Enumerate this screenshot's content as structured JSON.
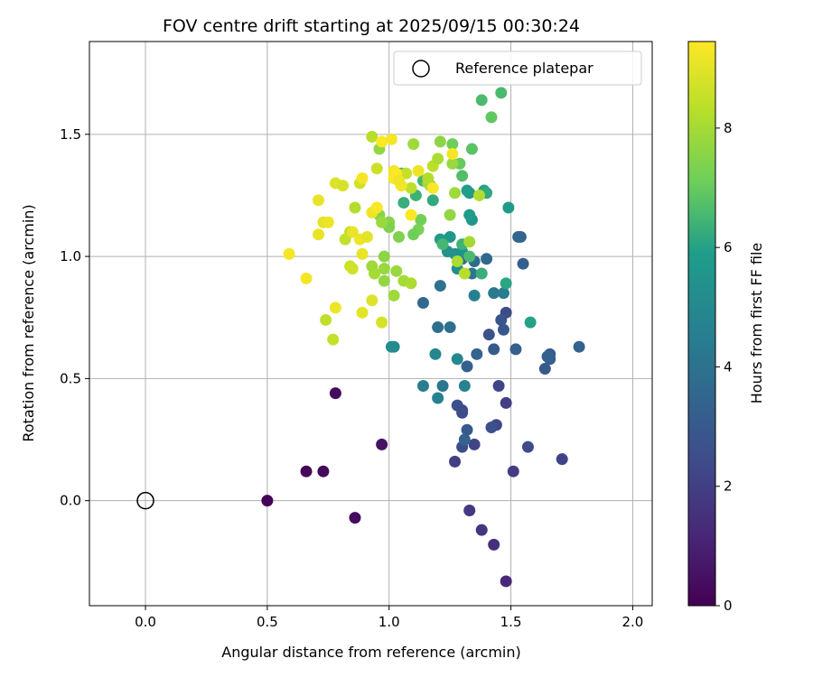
{
  "chart_data": {
    "type": "scatter",
    "title": "FOV centre drift starting at 2025/09/15 00:30:24",
    "xlabel": "Angular distance from reference (arcmin)",
    "ylabel": "Rotation from reference (arcmin)",
    "xlim": [
      -0.23,
      2.08
    ],
    "ylim": [
      -0.43,
      1.88
    ],
    "xticks": [
      "0.0",
      "0.5",
      "1.0",
      "1.5",
      "2.0"
    ],
    "xtick_values": [
      0.0,
      0.5,
      1.0,
      1.5,
      2.0
    ],
    "yticks": [
      "0.0",
      "0.5",
      "1.0",
      "1.5"
    ],
    "ytick_values": [
      0.0,
      0.5,
      1.0,
      1.5
    ],
    "grid": true,
    "legend": {
      "label": "Reference platepar",
      "placement": "top-right"
    },
    "reference_point": {
      "x": 0.0,
      "y": 0.0
    },
    "colorbar": {
      "label": "Hours from first FF file",
      "colormap": "viridis",
      "range": [
        0,
        9.45
      ],
      "ticks": [
        "0",
        "2",
        "4",
        "6",
        "8"
      ],
      "tick_values": [
        0,
        2,
        4,
        6,
        8
      ]
    },
    "points": [
      [
        0.5,
        0.0,
        0.1
      ],
      [
        0.66,
        0.12,
        0.2
      ],
      [
        0.73,
        0.12,
        0.25
      ],
      [
        0.78,
        0.44,
        0.35
      ],
      [
        0.86,
        -0.07,
        0.3
      ],
      [
        0.97,
        0.23,
        0.55
      ],
      [
        1.48,
        -0.33,
        1.2
      ],
      [
        1.43,
        -0.18,
        1.5
      ],
      [
        1.38,
        -0.12,
        1.7
      ],
      [
        1.33,
        -0.04,
        1.8
      ],
      [
        1.51,
        0.12,
        1.9
      ],
      [
        1.71,
        0.17,
        2.1
      ],
      [
        1.57,
        0.22,
        2.4
      ],
      [
        1.35,
        0.23,
        2.2
      ],
      [
        1.3,
        0.22,
        2.5
      ],
      [
        1.27,
        0.16,
        2.0
      ],
      [
        1.44,
        0.31,
        2.3
      ],
      [
        1.42,
        0.3,
        2.6
      ],
      [
        1.48,
        0.4,
        2.0
      ],
      [
        1.45,
        0.47,
        2.2
      ],
      [
        1.28,
        0.39,
        2.6
      ],
      [
        1.3,
        0.37,
        2.4
      ],
      [
        1.3,
        0.36,
        2.5
      ],
      [
        1.32,
        0.29,
        3.0
      ],
      [
        1.31,
        0.25,
        3.4
      ],
      [
        1.48,
        0.77,
        2.5
      ],
      [
        1.46,
        0.74,
        2.8
      ],
      [
        1.47,
        0.7,
        2.9
      ],
      [
        1.41,
        0.68,
        2.7
      ],
      [
        1.43,
        0.62,
        3.0
      ],
      [
        1.52,
        0.62,
        3.2
      ],
      [
        1.36,
        0.6,
        3.4
      ],
      [
        1.32,
        0.55,
        3.3
      ],
      [
        1.64,
        0.54,
        3.0
      ],
      [
        1.66,
        0.58,
        3.2
      ],
      [
        1.66,
        0.6,
        3.1
      ],
      [
        1.65,
        0.59,
        3.3
      ],
      [
        1.78,
        0.63,
        3.4
      ],
      [
        1.55,
        0.97,
        3.2
      ],
      [
        1.54,
        1.08,
        3.3
      ],
      [
        1.53,
        1.08,
        3.5
      ],
      [
        1.4,
        0.99,
        3.6
      ],
      [
        1.35,
        0.98,
        3.7
      ],
      [
        1.3,
        0.99,
        3.5
      ],
      [
        1.14,
        0.81,
        3.6
      ],
      [
        1.2,
        0.71,
        3.8
      ],
      [
        1.25,
        0.71,
        3.9
      ],
      [
        1.21,
        0.88,
        4.0
      ],
      [
        1.34,
        0.93,
        4.2
      ],
      [
        1.43,
        0.85,
        4.3
      ],
      [
        1.47,
        0.85,
        4.5
      ],
      [
        1.35,
        0.84,
        4.6
      ],
      [
        1.22,
        0.47,
        4.2
      ],
      [
        1.14,
        0.47,
        4.5
      ],
      [
        1.2,
        0.42,
        4.6
      ],
      [
        1.19,
        0.6,
        4.8
      ],
      [
        1.31,
        0.47,
        4.7
      ],
      [
        1.28,
        0.58,
        5.0
      ],
      [
        1.02,
        0.63,
        5.0
      ],
      [
        1.01,
        0.63,
        5.2
      ],
      [
        1.28,
        0.95,
        5.2
      ],
      [
        1.3,
        1.02,
        5.5
      ],
      [
        1.27,
        1.01,
        5.3
      ],
      [
        1.24,
        1.02,
        5.4
      ],
      [
        1.25,
        1.08,
        5.6
      ],
      [
        1.21,
        1.07,
        5.8
      ],
      [
        1.34,
        1.15,
        5.6
      ],
      [
        1.33,
        1.17,
        5.8
      ],
      [
        1.33,
        1.26,
        5.7
      ],
      [
        1.32,
        1.27,
        5.9
      ],
      [
        1.39,
        1.27,
        6.0
      ],
      [
        1.4,
        1.26,
        6.2
      ],
      [
        1.49,
        1.2,
        5.8
      ],
      [
        1.48,
        0.89,
        6.1
      ],
      [
        1.58,
        0.73,
        6.0
      ],
      [
        1.38,
        0.93,
        6.3
      ],
      [
        1.3,
        1.05,
        6.4
      ],
      [
        1.33,
        1.0,
        6.6
      ],
      [
        1.22,
        1.05,
        6.5
      ],
      [
        1.18,
        1.23,
        6.2
      ],
      [
        1.11,
        1.25,
        6.4
      ],
      [
        1.06,
        1.22,
        6.3
      ],
      [
        1.05,
        1.34,
        6.6
      ],
      [
        1.14,
        1.31,
        6.5
      ],
      [
        1.3,
        1.33,
        6.7
      ],
      [
        1.34,
        1.44,
        6.8
      ],
      [
        1.38,
        1.64,
        6.6
      ],
      [
        1.46,
        1.67,
        6.6
      ],
      [
        1.42,
        1.57,
        6.9
      ],
      [
        1.29,
        1.38,
        7.0
      ],
      [
        1.26,
        1.46,
        7.1
      ],
      [
        1.17,
        1.29,
        7.0
      ],
      [
        1.13,
        1.15,
        7.2
      ],
      [
        1.12,
        1.11,
        7.3
      ],
      [
        1.1,
        1.09,
        7.1
      ],
      [
        1.04,
        1.08,
        7.4
      ],
      [
        1.0,
        1.14,
        7.5
      ],
      [
        1.0,
        1.12,
        7.4
      ],
      [
        0.98,
        1.0,
        7.6
      ],
      [
        0.96,
        1.17,
        7.5
      ],
      [
        0.98,
        0.95,
        7.8
      ],
      [
        0.93,
        0.96,
        7.9
      ],
      [
        0.94,
        0.93,
        8.0
      ],
      [
        0.98,
        0.9,
        7.7
      ],
      [
        1.03,
        0.94,
        7.8
      ],
      [
        1.06,
        0.9,
        8.0
      ],
      [
        1.02,
        0.84,
        7.9
      ],
      [
        1.09,
        0.89,
        8.1
      ],
      [
        0.96,
        1.44,
        7.7
      ],
      [
        0.93,
        1.49,
        8.3
      ],
      [
        0.97,
        1.14,
        7.8
      ],
      [
        1.1,
        1.46,
        7.9
      ],
      [
        1.16,
        1.3,
        8.0
      ],
      [
        1.21,
        1.47,
        7.6
      ],
      [
        1.25,
        1.17,
        7.7
      ],
      [
        1.26,
        1.38,
        7.8
      ],
      [
        1.27,
        1.26,
        7.9
      ],
      [
        1.37,
        1.25,
        8.2
      ],
      [
        1.33,
        1.06,
        8.0
      ],
      [
        1.31,
        0.93,
        8.3
      ],
      [
        1.28,
        0.98,
        8.1
      ],
      [
        1.16,
        1.32,
        8.2
      ],
      [
        1.18,
        1.37,
        8.4
      ],
      [
        1.2,
        1.4,
        8.1
      ],
      [
        1.09,
        1.28,
        8.4
      ],
      [
        1.07,
        1.34,
        8.5
      ],
      [
        0.95,
        1.36,
        8.6
      ],
      [
        0.88,
        1.3,
        8.7
      ],
      [
        0.86,
        1.2,
        8.2
      ],
      [
        0.84,
        1.1,
        8.3
      ],
      [
        0.82,
        1.07,
        8.5
      ],
      [
        0.84,
        0.96,
        8.6
      ],
      [
        0.85,
        0.95,
        8.7
      ],
      [
        0.93,
        0.82,
        8.9
      ],
      [
        0.89,
        0.77,
        9.0
      ],
      [
        0.97,
        0.73,
        8.8
      ],
      [
        0.74,
        0.74,
        8.4
      ],
      [
        0.77,
        0.66,
        8.5
      ],
      [
        0.78,
        0.79,
        9.2
      ],
      [
        0.66,
        0.91,
        9.3
      ],
      [
        0.59,
        1.01,
        9.3
      ],
      [
        0.71,
        1.09,
        9.1
      ],
      [
        0.73,
        1.14,
        9.0
      ],
      [
        0.75,
        1.14,
        9.2
      ],
      [
        0.71,
        1.23,
        9.1
      ],
      [
        0.78,
        1.3,
        8.9
      ],
      [
        0.81,
        1.29,
        8.8
      ],
      [
        0.85,
        1.1,
        9.1
      ],
      [
        0.88,
        1.07,
        9.2
      ],
      [
        0.91,
        1.08,
        9.0
      ],
      [
        0.89,
        1.01,
        9.1
      ],
      [
        0.89,
        1.32,
        9.3
      ],
      [
        0.93,
        1.18,
        9.2
      ],
      [
        0.95,
        1.2,
        9.4
      ],
      [
        0.97,
        1.47,
        9.4
      ],
      [
        1.01,
        1.48,
        9.3
      ],
      [
        1.02,
        1.32,
        9.4
      ],
      [
        1.02,
        1.35,
        9.3
      ],
      [
        1.03,
        1.34,
        9.4
      ],
      [
        1.05,
        1.29,
        9.3
      ],
      [
        1.12,
        1.35,
        9.2
      ],
      [
        1.18,
        1.28,
        9.4
      ],
      [
        1.26,
        1.42,
        9.3
      ],
      [
        1.04,
        1.31,
        9.2
      ],
      [
        1.09,
        1.17,
        9.4
      ]
    ]
  }
}
